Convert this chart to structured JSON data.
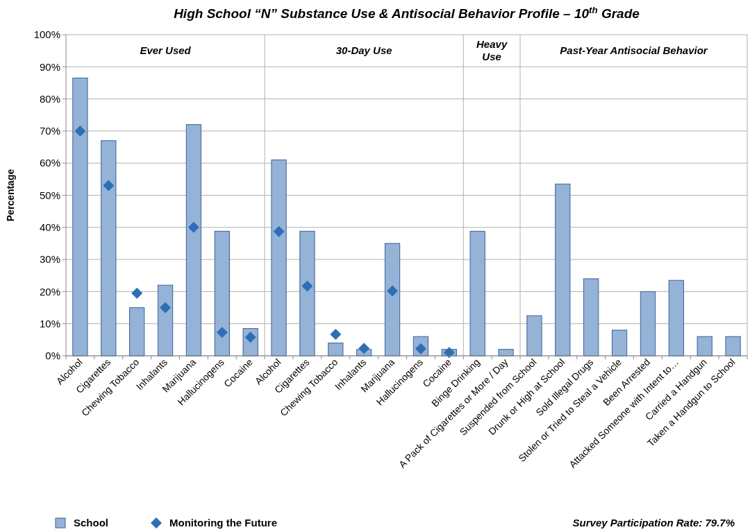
{
  "chart_data": {
    "type": "bar",
    "title": "High School “N” Substance Use & Antisocial Behavior Profile – 10$^{th}$ Grade",
    "ylabel": "Percentage",
    "categories": [
      "Alcohol",
      "Cigarettes",
      "Chewing Tobacco",
      "Inhalants",
      "Marijuana",
      "Hallucinogens",
      "Cocaine",
      "Alcohol",
      "Cigarettes",
      "Chewing Tobacco",
      "Inhalants",
      "Marijuana",
      "Hallucinogens",
      "Cocaine",
      "Binge Drinking",
      "A Pack of Cigarettes or More / Day",
      "Suspended from School",
      "Drunk or High at School",
      "Sold Illegal Drugs",
      "Stolen or Tried to Steal a Vehicle",
      "Been Arrested",
      "Attacked Someone with Intent to…",
      "Carried a Handgun",
      "Taken a Handgun to School"
    ],
    "series": [
      {
        "name": "School",
        "color": "#95b3d7",
        "values": [
          86.5,
          67,
          15,
          22,
          72,
          38.8,
          8.5,
          61,
          38.8,
          4,
          2,
          35,
          6,
          2,
          38.8,
          2,
          12.5,
          53.5,
          24,
          8,
          20,
          23.5,
          6,
          6
        ]
      },
      {
        "name": "Monitoring the Future",
        "type": "scatter",
        "color": "#2e6eb5",
        "values": [
          70,
          53,
          19.5,
          15,
          40,
          7.3,
          5.8,
          38.7,
          21.7,
          6.7,
          2.3,
          20.2,
          2.2,
          1,
          null,
          null,
          null,
          null,
          null,
          null,
          null,
          null,
          null,
          null
        ]
      }
    ],
    "ylim": [
      0,
      100
    ],
    "yticks": [
      {
        "value": 0,
        "label": "0%"
      },
      {
        "value": 10,
        "label": "10%"
      },
      {
        "value": 20,
        "label": "20%"
      },
      {
        "value": 30,
        "label": "30%"
      },
      {
        "value": 40,
        "label": "40%"
      },
      {
        "value": 50,
        "label": "50%"
      },
      {
        "value": 60,
        "label": "60%"
      },
      {
        "value": 70,
        "label": "70%"
      },
      {
        "value": 80,
        "label": "80%"
      },
      {
        "value": 90,
        "label": "90%"
      },
      {
        "value": 100,
        "label": "100%"
      }
    ],
    "grid": "y",
    "legend": "bottom left",
    "marker": "diamond",
    "annotations": [
      "Ever Used",
      "30-Day Use",
      "Heavy Use",
      "Past-Year Antisocial Behavior",
      "Survey Participation Rate: 79.7%"
    ]
  }
}
